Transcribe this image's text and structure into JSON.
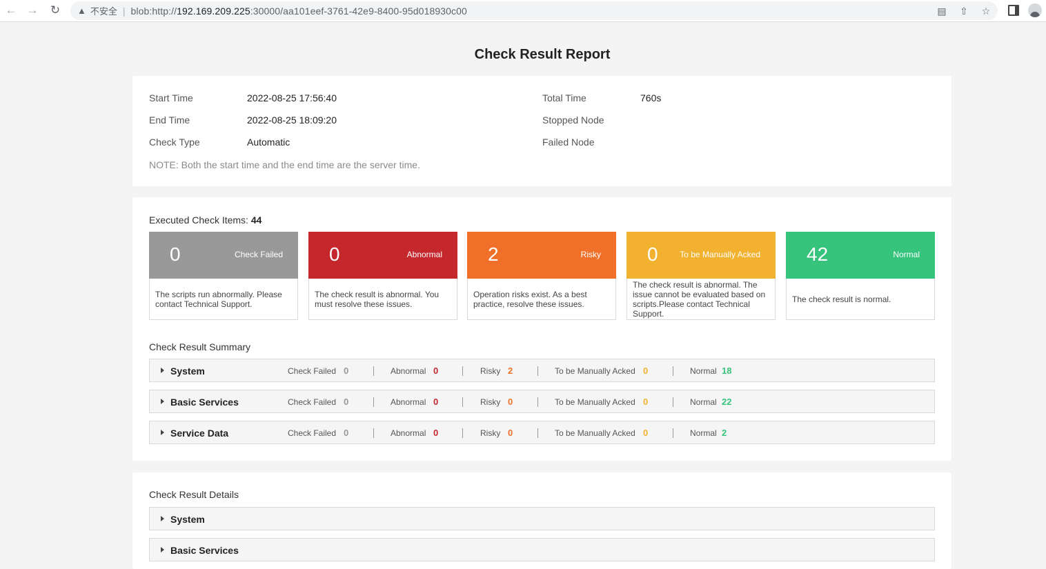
{
  "browser": {
    "insecure_label": "不安全",
    "url_prefix": "blob:http://",
    "url_host": "192.169.209.225",
    "url_rest": ":30000/aa101eef-3761-42e9-8400-95d018930c00"
  },
  "report": {
    "title": "Check Result Report",
    "info": {
      "start_time_label": "Start Time",
      "start_time": "2022-08-25 17:56:40",
      "end_time_label": "End Time",
      "end_time": "2022-08-25 18:09:20",
      "check_type_label": "Check Type",
      "check_type": "Automatic",
      "total_time_label": "Total Time",
      "total_time": "760s",
      "stopped_node_label": "Stopped Node",
      "stopped_node": "",
      "failed_node_label": "Failed Node",
      "failed_node": "",
      "note": "NOTE: Both the start time and the end time are the server time."
    },
    "executed": {
      "label": "Executed Check Items: ",
      "count": "44"
    },
    "stats": [
      {
        "count": "0",
        "label": "Check Failed",
        "color": "#999999",
        "desc": "The scripts run abnormally. Please contact Technical Support."
      },
      {
        "count": "0",
        "label": "Abnormal",
        "color": "#c4272c",
        "desc": "The check result is abnormal. You must resolve these issues."
      },
      {
        "count": "2",
        "label": "Risky",
        "color": "#f0702a",
        "desc": "Operation risks exist. As a best practice, resolve these issues."
      },
      {
        "count": "0",
        "label": "To be Manually Acked",
        "color": "#f3b130",
        "desc": "The check result is abnormal. The issue cannot be evaluated based on scripts.Please contact Technical Support."
      },
      {
        "count": "42",
        "label": "Normal",
        "color": "#36c47c",
        "desc": "The check result is normal."
      }
    ],
    "summary": {
      "title": "Check Result Summary",
      "col_labels": {
        "failed": "Check Failed",
        "abnormal": "Abnormal",
        "risky": "Risky",
        "acked": "To be Manually Acked",
        "normal": "Normal"
      },
      "rows": [
        {
          "name": "System",
          "failed": "0",
          "abnormal": "0",
          "risky": "2",
          "acked": "0",
          "normal": "18"
        },
        {
          "name": "Basic Services",
          "failed": "0",
          "abnormal": "0",
          "risky": "0",
          "acked": "0",
          "normal": "22"
        },
        {
          "name": "Service Data",
          "failed": "0",
          "abnormal": "0",
          "risky": "0",
          "acked": "0",
          "normal": "2"
        }
      ]
    },
    "details": {
      "title": "Check Result Details",
      "rows": [
        {
          "name": "System"
        },
        {
          "name": "Basic Services"
        }
      ]
    }
  }
}
